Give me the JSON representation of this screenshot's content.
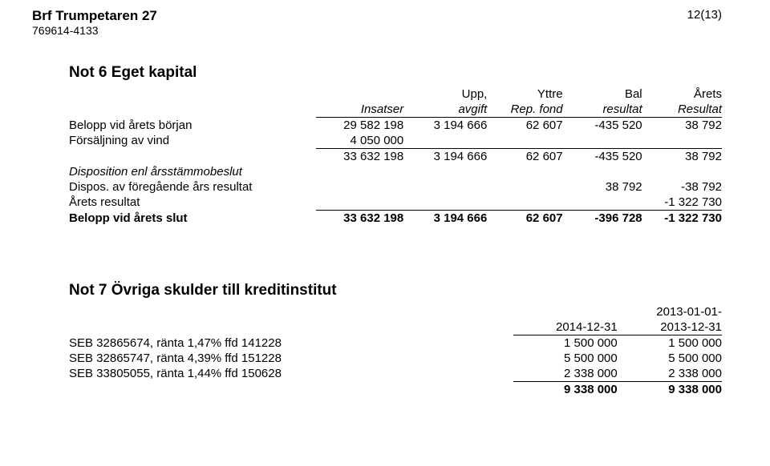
{
  "header": {
    "company": "Brf Trumpetaren 27",
    "orgnr": "769614-4133",
    "page": "12(13)"
  },
  "note6": {
    "title": "Not 6  Eget kapital",
    "head": {
      "c1a": "",
      "c1b": "Insatser",
      "c2a": "Upp,",
      "c2b": "avgift",
      "c3a": "Yttre",
      "c3b": "Rep. fond",
      "c4a": "Bal",
      "c4b": "resultat",
      "c5a": "Årets",
      "c5b": "Resultat"
    },
    "rows": {
      "r1": {
        "lbl": "Belopp vid årets början",
        "c1": "29 582 198",
        "c2": "3 194 666",
        "c3": "62 607",
        "c4": "-435 520",
        "c5": "38 792"
      },
      "r2": {
        "lbl": "Försäljning av vind",
        "c1": "4 050 000",
        "c2": "",
        "c3": "",
        "c4": "",
        "c5": ""
      },
      "r3": {
        "lbl": "",
        "c1": "33 632 198",
        "c2": "3 194 666",
        "c3": "62 607",
        "c4": "-435 520",
        "c5": "38 792"
      },
      "r4": {
        "lbl": "Disposition enl årsstämmobeslut"
      },
      "r5": {
        "lbl": "Dispos. av föregående års resultat",
        "c1": "",
        "c2": "",
        "c3": "",
        "c4": "38 792",
        "c5": "-38 792"
      },
      "r6": {
        "lbl": "Årets resultat",
        "c1": "",
        "c2": "",
        "c3": "",
        "c4": "",
        "c5": "-1 322 730"
      },
      "r7": {
        "lbl": "Belopp vid årets slut",
        "c1": "33 632 198",
        "c2": "3 194 666",
        "c3": "62 607",
        "c4": "-396 728",
        "c5": "-1 322 730"
      }
    }
  },
  "note7": {
    "title": "Not 7  Övriga skulder till kreditinstitut",
    "head": {
      "cB1": "",
      "cB2": "2014-12-31",
      "cC1": "2013-01-01-",
      "cC2": "2013-12-31"
    },
    "rows": {
      "r1": {
        "lbl": "SEB 32865674, ränta 1,47% ffd 141228",
        "cB": "1 500 000",
        "cC": "1 500 000"
      },
      "r2": {
        "lbl": "SEB 32865747, ränta 4,39% ffd 151228",
        "cB": "5 500 000",
        "cC": "5 500 000"
      },
      "r3": {
        "lbl": "SEB 33805055, ränta 1,44% ffd 150628",
        "cB": "2 338 000",
        "cC": "2 338 000"
      },
      "r4": {
        "lbl": "",
        "cB": "9 338 000",
        "cC": "9 338 000"
      }
    }
  }
}
